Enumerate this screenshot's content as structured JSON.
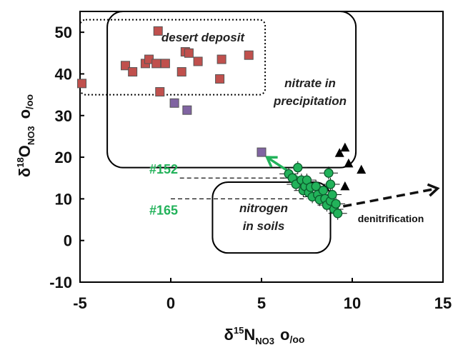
{
  "chart_data": {
    "type": "scatter",
    "xlabel": {
      "base": "δ",
      "sup": "15",
      "main": "N",
      "sub": "NO3",
      "unit": "o",
      "unitsub": "/oo"
    },
    "ylabel": {
      "base": "δ",
      "sup": "18",
      "main": "O",
      "sub": "NO3",
      "unit": "o",
      "unitsub": "/oo"
    },
    "xlim": [
      -5,
      15
    ],
    "ylim": [
      -10,
      55
    ],
    "xticks": [
      "-5",
      "0",
      "5",
      "10",
      "15"
    ],
    "yticks": [
      "-10",
      "0",
      "10",
      "20",
      "30",
      "40",
      "50"
    ],
    "grid": false,
    "regions": [
      {
        "label": "desert deposit",
        "style": "dotted",
        "x": [
          -5,
          5.2
        ],
        "y": [
          35,
          53
        ]
      },
      {
        "label_lines": [
          "nitrate in",
          "precipitation"
        ],
        "style": "rounded",
        "x": [
          -3.5,
          10.2
        ],
        "y": [
          17.5,
          55
        ]
      },
      {
        "label_lines": [
          "nitrogen",
          "in soils"
        ],
        "style": "rounded",
        "x": [
          2.3,
          8.8
        ],
        "y": [
          -3,
          14
        ]
      }
    ],
    "series": [
      {
        "marker": "square",
        "color": "#c0504d",
        "points": [
          [
            -4.9,
            37.7
          ],
          [
            -2.5,
            42
          ],
          [
            -2.1,
            40.5
          ],
          [
            -1.4,
            42.5
          ],
          [
            -1.2,
            43.5
          ],
          [
            -0.8,
            42.5
          ],
          [
            -0.7,
            50.3
          ],
          [
            -0.6,
            35.7
          ],
          [
            -0.3,
            42.5
          ],
          [
            0.6,
            40.5
          ],
          [
            0.8,
            45.3
          ],
          [
            1,
            45
          ],
          [
            1.5,
            43
          ],
          [
            2.7,
            38.8
          ],
          [
            2.8,
            43.5
          ],
          [
            4.3,
            44.5
          ]
        ]
      },
      {
        "marker": "square",
        "color": "#8064a2",
        "points": [
          [
            0.2,
            33
          ],
          [
            0.9,
            31.3
          ],
          [
            5,
            21.2
          ]
        ]
      },
      {
        "marker": "triangle",
        "color": "#000000",
        "points": [
          [
            9.3,
            21
          ],
          [
            9.6,
            22.3
          ],
          [
            9.8,
            18.5
          ],
          [
            10.5,
            17
          ],
          [
            9.6,
            13
          ]
        ]
      },
      {
        "marker": "circle",
        "color": "#22b25a",
        "points": [
          [
            6.5,
            16
          ],
          [
            6.7,
            15
          ],
          [
            6.9,
            13.5
          ],
          [
            7,
            17.5
          ],
          [
            7.2,
            14.5
          ],
          [
            7.3,
            12
          ],
          [
            7.4,
            13
          ],
          [
            7.5,
            14.5
          ],
          [
            7.6,
            11.5
          ],
          [
            7.7,
            12.8
          ],
          [
            7.8,
            10.5
          ],
          [
            8,
            13
          ],
          [
            8.1,
            11
          ],
          [
            8.2,
            9.8
          ],
          [
            8.4,
            12
          ],
          [
            8.5,
            10
          ],
          [
            8.6,
            8.5
          ],
          [
            8.7,
            16.2
          ],
          [
            8.8,
            9.5
          ],
          [
            8.9,
            11
          ],
          [
            9,
            7.5
          ],
          [
            9.1,
            8.8
          ],
          [
            9.2,
            6.5
          ],
          [
            8.8,
            13.5
          ]
        ]
      }
    ],
    "arrows": [
      {
        "style": "solid",
        "color": "#22b25a",
        "from": [
          8.8,
          10
        ],
        "to": [
          5.3,
          20
        ]
      },
      {
        "style": "dashed",
        "color": "#111111",
        "from": [
          9.5,
          8.2
        ],
        "to": [
          14.7,
          12.5
        ],
        "label": "denitrification"
      }
    ],
    "reference_lines": [
      {
        "label": "#152",
        "y": 15,
        "x_from": 0.5,
        "x_to": 6.5
      },
      {
        "label": "#165",
        "y": 10,
        "x_from": 0.0,
        "x_to": 7.5
      }
    ]
  }
}
